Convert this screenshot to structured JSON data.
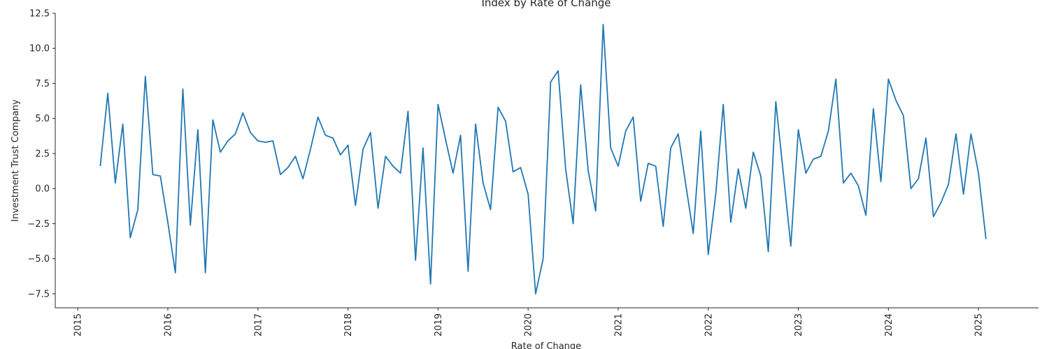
{
  "chart_data": {
    "type": "line",
    "title": "Index by Rate of Change",
    "xlabel": "Rate of Change",
    "ylabel": "Investment Trust Company",
    "xlim": [
      "2014-10-01",
      "2025-09-01"
    ],
    "ylim": [
      -8.5,
      12.5
    ],
    "x_ticks": [
      "2015",
      "2016",
      "2017",
      "2018",
      "2019",
      "2020",
      "2021",
      "2022",
      "2023",
      "2024",
      "2025"
    ],
    "y_ticks": [
      "12.5",
      "10.0",
      "7.5",
      "5.0",
      "2.5",
      "0.0",
      "−2.5",
      "−5.0",
      "−7.5"
    ],
    "grid": false,
    "series_color": "#1f77b4",
    "series": [
      {
        "x": [
          "2015-04",
          "2015-05",
          "2015-06",
          "2015-07",
          "2015-08",
          "2015-09",
          "2015-10",
          "2015-11",
          "2015-12",
          "2016-01",
          "2016-02",
          "2016-03",
          "2016-04",
          "2016-05",
          "2016-06",
          "2016-07",
          "2016-08",
          "2016-09",
          "2016-10",
          "2016-11",
          "2016-12",
          "2017-01",
          "2017-02",
          "2017-03",
          "2017-04",
          "2017-05",
          "2017-06",
          "2017-07",
          "2017-08",
          "2017-09",
          "2017-10",
          "2017-11",
          "2017-12",
          "2018-01",
          "2018-02",
          "2018-03",
          "2018-04",
          "2018-05",
          "2018-06",
          "2018-07",
          "2018-08",
          "2018-09",
          "2018-10",
          "2018-11",
          "2018-12",
          "2019-01",
          "2019-02",
          "2019-03",
          "2019-04",
          "2019-05",
          "2019-06",
          "2019-07",
          "2019-08",
          "2019-09",
          "2019-10",
          "2019-11",
          "2019-12",
          "2020-01",
          "2020-02",
          "2020-03",
          "2020-04",
          "2020-05",
          "2020-06",
          "2020-07",
          "2020-08",
          "2020-09",
          "2020-10",
          "2020-11",
          "2020-12",
          "2021-01",
          "2021-02",
          "2021-03",
          "2021-04",
          "2021-05",
          "2021-06",
          "2021-07",
          "2021-08",
          "2021-09",
          "2021-10",
          "2021-11",
          "2021-12",
          "2022-01",
          "2022-02",
          "2022-03",
          "2022-04",
          "2022-05",
          "2022-06",
          "2022-07",
          "2022-08",
          "2022-09",
          "2022-10",
          "2022-11",
          "2022-12",
          "2023-01",
          "2023-02",
          "2023-03",
          "2023-04",
          "2023-05",
          "2023-06",
          "2023-07",
          "2023-08",
          "2023-09",
          "2023-10",
          "2023-11",
          "2023-12",
          "2024-01",
          "2024-02",
          "2024-03",
          "2024-04",
          "2024-05",
          "2024-06",
          "2024-07",
          "2024-08",
          "2024-09",
          "2024-10",
          "2024-11",
          "2024-12",
          "2025-01",
          "2025-02"
        ],
        "y": [
          1.6,
          6.8,
          0.4,
          4.6,
          -3.5,
          -1.5,
          8.0,
          1.0,
          0.9,
          -2.4,
          -6.0,
          7.1,
          -2.6,
          4.2,
          -6.0,
          4.9,
          2.6,
          3.4,
          3.9,
          5.4,
          4.0,
          3.4,
          3.3,
          3.4,
          1.0,
          1.5,
          2.3,
          0.7,
          2.8,
          5.1,
          3.8,
          3.6,
          2.4,
          3.1,
          -1.2,
          2.8,
          4.0,
          -1.4,
          2.3,
          1.6,
          1.1,
          5.5,
          -5.1,
          2.9,
          -6.8,
          6.0,
          3.5,
          1.1,
          3.8,
          -5.9,
          4.6,
          0.4,
          -1.5,
          5.8,
          4.8,
          1.2,
          1.5,
          -0.4,
          -7.5,
          -5.0,
          7.6,
          8.4,
          1.4,
          -2.5,
          7.4,
          1.3,
          -1.6,
          11.7,
          2.9,
          1.6,
          4.1,
          5.1,
          -0.9,
          1.8,
          1.6,
          -2.7,
          2.9,
          3.9,
          0.3,
          -3.2,
          4.1,
          -4.7,
          -0.4,
          6.0,
          -2.4,
          1.4,
          -1.4,
          2.6,
          0.9,
          -4.5,
          6.2,
          1.1,
          -4.1,
          4.2,
          1.1,
          2.1,
          2.3,
          4.1,
          7.8,
          0.4,
          1.1,
          0.2,
          -1.9,
          5.7,
          0.5,
          7.8,
          6.3,
          5.2,
          0.0,
          0.7,
          3.6,
          -2.0,
          -1.0,
          0.3,
          3.9,
          -0.4,
          3.9,
          1.1,
          -3.6
        ]
      }
    ]
  }
}
